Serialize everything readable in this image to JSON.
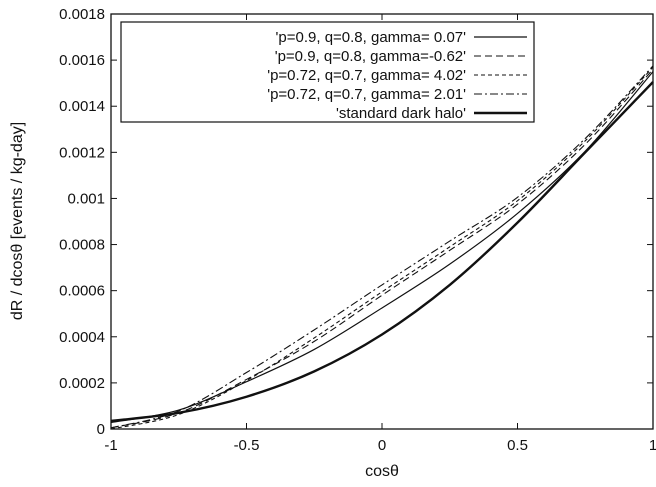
{
  "chart_data": {
    "type": "line",
    "title": "",
    "xlabel": "cosθ",
    "ylabel": "dR / dcosθ   [events / kg-day]",
    "xlim": [
      -1,
      1
    ],
    "ylim": [
      0,
      0.0018
    ],
    "x_ticks": [
      "-1",
      "-0.5",
      "0",
      "0.5",
      "1"
    ],
    "y_ticks": [
      "0",
      "0.0002",
      "0.0004",
      "0.0006",
      "0.0008",
      "0.001",
      "0.0012",
      "0.0014",
      "0.0016",
      "0.0018"
    ],
    "legend_position": "top",
    "x": [
      -1.0,
      -0.75,
      -0.5,
      -0.25,
      0.0,
      0.25,
      0.5,
      0.75,
      1.0
    ],
    "series": [
      {
        "name": "'p=0.9, q=0.8, gamma= 0.07'",
        "style": "solid",
        "values": [
          2.8e-05,
          8.2e-05,
          0.000205,
          0.000345,
          0.000525,
          0.000715,
          0.000935,
          0.001205,
          0.00155
        ]
      },
      {
        "name": "'p=0.9, q=0.8, gamma=-0.62'",
        "style": "dashed",
        "values": [
          5e-06,
          7e-05,
          0.000215,
          0.00038,
          0.00058,
          0.000775,
          0.000975,
          0.001235,
          0.00156
        ]
      },
      {
        "name": "'p=0.72, q=0.7, gamma= 4.02'",
        "style": "short-dashed",
        "values": [
          0.0,
          6.3e-05,
          0.00021,
          0.000395,
          0.000595,
          0.00079,
          0.00099,
          0.00125,
          0.00157
        ]
      },
      {
        "name": "'p=0.72, q=0.7, gamma= 2.01'",
        "style": "dash-dot",
        "values": [
          5e-06,
          7.8e-05,
          0.000245,
          0.00043,
          0.000625,
          0.000815,
          0.001005,
          0.00126,
          0.001575
        ]
      },
      {
        "name": "'standard dark halo'",
        "style": "thick-solid",
        "values": [
          3.5e-05,
          7e-05,
          0.00014,
          0.00025,
          0.00041,
          0.000625,
          0.000895,
          0.0012,
          0.001505
        ]
      }
    ],
    "grid": false
  }
}
